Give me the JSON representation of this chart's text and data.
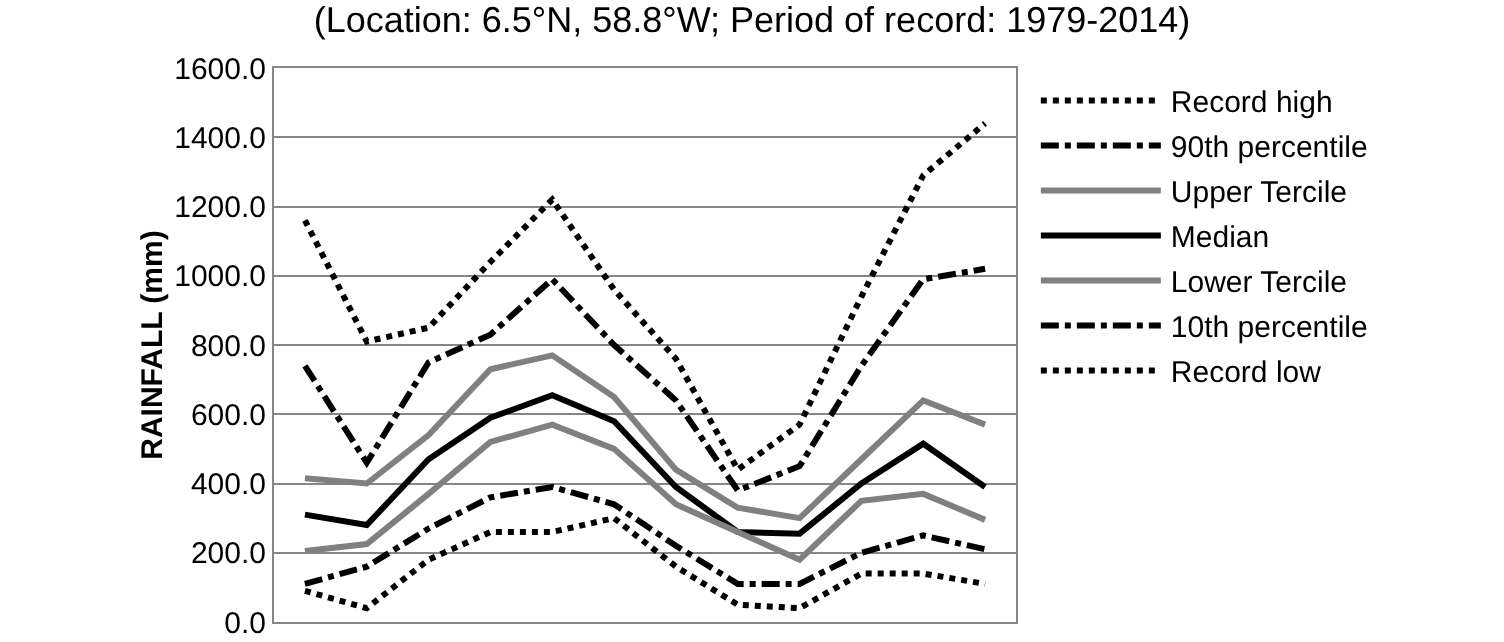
{
  "chart_data": {
    "type": "line",
    "title": "(Location: 6.5°N, 58.8°W; Period of record: 1979-2014)",
    "ylabel": "RAINFALL (mm)",
    "categories": [
      null,
      null,
      null,
      null,
      null,
      null,
      null,
      null,
      null,
      null,
      null,
      null
    ],
    "ylim": [
      0,
      1600
    ],
    "yticks": [
      {
        "value": 0,
        "label": "0.0"
      },
      {
        "value": 200,
        "label": "200.0"
      },
      {
        "value": 400,
        "label": "400.0"
      },
      {
        "value": 600,
        "label": "600.0"
      },
      {
        "value": 800,
        "label": "800.0"
      },
      {
        "value": 1000,
        "label": "1000.0"
      },
      {
        "value": 1200,
        "label": "1200.0"
      },
      {
        "value": 1400,
        "label": "1400.0"
      },
      {
        "value": 1600,
        "label": "1600.0"
      }
    ],
    "grid": "y",
    "legend": "right",
    "marker": "none",
    "series": [
      {
        "name": "Record high",
        "color": "#000000",
        "line_style": "dotted",
        "values": [
          1160,
          810,
          850,
          1040,
          1220,
          960,
          760,
          440,
          570,
          940,
          1290,
          1440
        ]
      },
      {
        "name": "90th percentile",
        "color": "#000000",
        "line_style": "dashed",
        "values": [
          740,
          460,
          750,
          830,
          990,
          800,
          640,
          380,
          450,
          740,
          990,
          1020
        ]
      },
      {
        "name": "Upper Tercile",
        "color": "#808080",
        "line_style": "solid",
        "values": [
          415,
          400,
          540,
          730,
          770,
          650,
          440,
          330,
          300,
          470,
          640,
          570
        ]
      },
      {
        "name": "Median",
        "color": "#000000",
        "line_style": "solid",
        "values": [
          310,
          280,
          470,
          590,
          655,
          580,
          390,
          260,
          255,
          400,
          515,
          390
        ]
      },
      {
        "name": "Lower Tercile",
        "color": "#808080",
        "line_style": "solid",
        "values": [
          205,
          225,
          370,
          520,
          570,
          500,
          340,
          260,
          180,
          350,
          370,
          295
        ]
      },
      {
        "name": "10th percentile",
        "color": "#000000",
        "line_style": "dashed",
        "values": [
          110,
          160,
          270,
          360,
          390,
          340,
          220,
          110,
          110,
          200,
          250,
          210
        ]
      },
      {
        "name": "Record low",
        "color": "#000000",
        "line_style": "dotted",
        "values": [
          90,
          40,
          180,
          260,
          260,
          300,
          160,
          50,
          40,
          140,
          140,
          110
        ]
      }
    ]
  }
}
